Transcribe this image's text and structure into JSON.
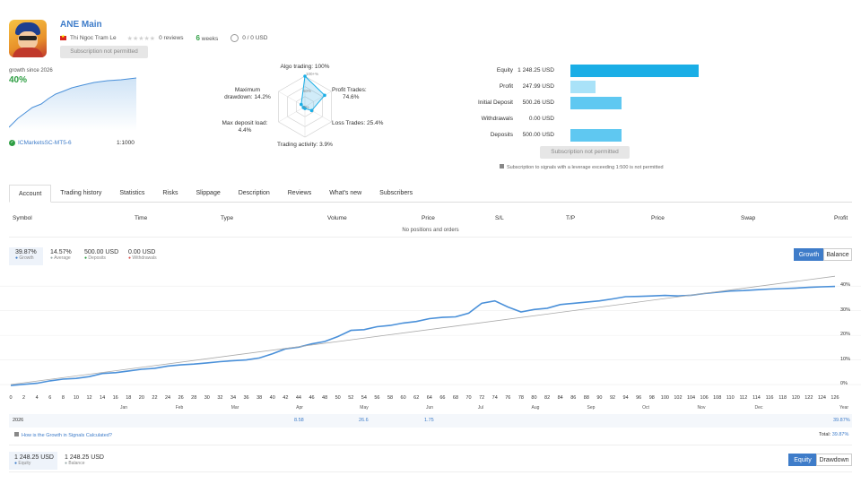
{
  "header": {
    "title": "ANE Main",
    "author": "Thi Ngoc Tram Le",
    "reviews": "0 reviews",
    "weeks_num": "6",
    "weeks_label": "weeks",
    "subscribers": "0 / 0 USD",
    "subscribe_btn": "Subscription not permitted"
  },
  "growth_mini": {
    "label": "growth since 2026",
    "value": "40%",
    "broker": "ICMarketsSC-MT5-6",
    "leverage": "1:1000"
  },
  "radar": {
    "algo": "Algo trading: 100%",
    "profit": "Profit Trades:",
    "profit_v": "74.6%",
    "loss": "Loss Trades: 25.4%",
    "activity": "Trading activity: 3.9%",
    "maxdep": "Max deposit load:",
    "maxdep_v": "4.4%",
    "dd": "Maximum",
    "dd2": "drawdown: 14.2%",
    "r100": "100+%",
    "r50": "50%",
    "r0": "0%",
    "values": {
      "algo": 1.0,
      "profit": 0.746,
      "loss": 0.254,
      "activity": 0.039,
      "maxdep": 0.044,
      "dd": 0.142
    }
  },
  "stats": {
    "rows": [
      {
        "label": "Equity",
        "value": "1 248.25 USD",
        "fraction": 1.0,
        "color": "#1aaee6"
      },
      {
        "label": "Profit",
        "value": "247.99 USD",
        "fraction": 0.199,
        "color": "#a9e2f8"
      },
      {
        "label": "Initial Deposit",
        "value": "500.26 USD",
        "fraction": 0.401,
        "color": "#5fc8f1"
      },
      {
        "label": "Withdrawals",
        "value": "0.00 USD",
        "fraction": 0.0,
        "color": "#5fc8f1"
      },
      {
        "label": "Deposits",
        "value": "500.00 USD",
        "fraction": 0.401,
        "color": "#5fc8f1"
      }
    ],
    "subscribe_btn": "Subscription not permitted",
    "note": "Subscription to signals with a leverage exceeding 1:500 is not permitted"
  },
  "tabs": [
    "Account",
    "Trading history",
    "Statistics",
    "Risks",
    "Slippage",
    "Description",
    "Reviews",
    "What's new",
    "Subscribers"
  ],
  "table": {
    "headers": [
      "Symbol",
      "Time",
      "Type",
      "Volume",
      "Price",
      "S/L",
      "T/P",
      "Price",
      "Swap",
      "Profit"
    ],
    "empty": "No positions and orders"
  },
  "summary": [
    {
      "value": "39.87%",
      "label": "Growth",
      "color": "#3e7cc9"
    },
    {
      "value": "14.57%",
      "label": "Average",
      "color": "#9aa"
    },
    {
      "value": "500.00 USD",
      "label": "Deposits",
      "color": "#2e9e43"
    },
    {
      "value": "0.00 USD",
      "label": "Withdrawals",
      "color": "#d9534f"
    }
  ],
  "toggles": {
    "growth": "Growth",
    "balance": "Balance"
  },
  "chart_data": {
    "type": "line",
    "x_ticks": [
      "0",
      "2",
      "4",
      "6",
      "8",
      "10",
      "12",
      "14",
      "16",
      "18",
      "20",
      "22",
      "24",
      "26",
      "28",
      "30",
      "32",
      "34",
      "36",
      "38",
      "40",
      "42",
      "44",
      "46",
      "48",
      "50",
      "52",
      "54",
      "56",
      "58",
      "60",
      "62",
      "64",
      "66",
      "68",
      "70",
      "72",
      "74",
      "76",
      "78",
      "80",
      "82",
      "84",
      "86",
      "88",
      "90",
      "92",
      "94",
      "96",
      "98",
      "100",
      "102",
      "104",
      "106",
      "108",
      "110",
      "112",
      "114",
      "116",
      "118",
      "120",
      "122",
      "124",
      "126"
    ],
    "months": [
      "Jan",
      "Feb",
      "Mar",
      "Apr",
      "May",
      "Jun",
      "Jul",
      "Aug",
      "Sep",
      "Oct",
      "Nov",
      "Dec",
      "Year"
    ],
    "y_ticks": [
      "0%",
      "10%",
      "20%",
      "30%",
      "40%"
    ],
    "ylim": [
      -4,
      47
    ],
    "xlim": [
      0,
      126
    ],
    "series": [
      {
        "values": [
          [
            0,
            -0.4
          ],
          [
            4,
            0.5
          ],
          [
            6,
            1.5
          ],
          [
            8,
            2.2
          ],
          [
            10,
            2.5
          ],
          [
            12,
            3.2
          ],
          [
            14,
            4.5
          ],
          [
            16,
            4.8
          ],
          [
            18,
            5.5
          ],
          [
            20,
            6.2
          ],
          [
            22,
            6.6
          ],
          [
            24,
            7.5
          ],
          [
            26,
            8.0
          ],
          [
            28,
            8.3
          ],
          [
            30,
            8.8
          ],
          [
            32,
            9.3
          ],
          [
            34,
            9.7
          ],
          [
            36,
            10.0
          ],
          [
            38,
            10.8
          ],
          [
            40,
            12.5
          ],
          [
            42,
            14.5
          ],
          [
            44,
            15.2
          ],
          [
            46,
            16.5
          ],
          [
            48,
            17.5
          ],
          [
            50,
            19.5
          ],
          [
            52,
            22.0
          ],
          [
            54,
            22.3
          ],
          [
            56,
            23.5
          ],
          [
            58,
            24.0
          ],
          [
            60,
            25.0
          ],
          [
            62,
            25.6
          ],
          [
            64,
            26.8
          ],
          [
            66,
            27.3
          ],
          [
            68,
            27.5
          ],
          [
            70,
            29.0
          ],
          [
            72,
            33.0
          ],
          [
            74,
            34.0
          ],
          [
            76,
            31.5
          ],
          [
            78,
            29.5
          ],
          [
            80,
            30.5
          ],
          [
            82,
            31.0
          ],
          [
            84,
            32.5
          ],
          [
            86,
            33.0
          ],
          [
            88,
            33.5
          ],
          [
            90,
            34.0
          ],
          [
            92,
            34.8
          ],
          [
            94,
            35.7
          ],
          [
            96,
            35.8
          ],
          [
            98,
            36.0
          ],
          [
            100,
            36.2
          ],
          [
            102,
            36.0
          ],
          [
            104,
            36.3
          ],
          [
            106,
            37.0
          ],
          [
            108,
            37.5
          ],
          [
            110,
            38.0
          ],
          [
            112,
            38.2
          ],
          [
            114,
            38.5
          ],
          [
            116,
            38.8
          ],
          [
            118,
            39.0
          ],
          [
            120,
            39.2
          ],
          [
            122,
            39.5
          ],
          [
            124,
            39.7
          ],
          [
            126,
            39.87
          ]
        ],
        "color": "#4a90d9"
      },
      {
        "values": [
          [
            0,
            0
          ],
          [
            126,
            44
          ]
        ],
        "color": "#aaaaaa"
      }
    ]
  },
  "year_row": {
    "year": "2026",
    "apr": "8.58",
    "may": "26.6",
    "jun": "1.75",
    "ytd": "39.87%"
  },
  "footer": {
    "link": "How is the Growth in Signals Calculated?",
    "total_label": "Total:",
    "total_value": "39.87%"
  },
  "equity_summary": [
    {
      "value": "1 248.25 USD",
      "label": "Equity",
      "color": "#3e7cc9"
    },
    {
      "value": "1 248.25 USD",
      "label": "Balance",
      "color": "#9aa"
    }
  ],
  "equity_toggles": {
    "equity": "Equity",
    "drawdown": "Drawdown"
  }
}
